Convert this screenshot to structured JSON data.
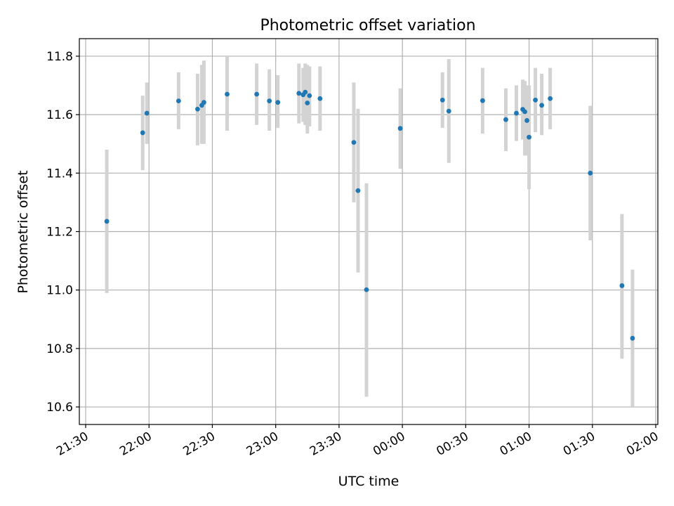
{
  "chart_data": {
    "type": "scatter",
    "title": "Photometric offset variation",
    "xlabel": "UTC time",
    "ylabel": "Photometric offset",
    "grid": true,
    "xlim": [
      "21:27",
      "02:01"
    ],
    "ylim": [
      10.54,
      11.86
    ],
    "x_ticks": [
      "21:30",
      "22:00",
      "22:30",
      "23:00",
      "23:30",
      "00:00",
      "00:30",
      "01:00",
      "01:30",
      "02:00"
    ],
    "y_ticks": [
      10.6,
      10.8,
      11.0,
      11.2,
      11.4,
      11.6,
      11.8
    ],
    "colors": {
      "point": "#1f77b4",
      "errorbar": "#d3d3d3"
    },
    "points": [
      {
        "x": "21:40",
        "y": 11.235,
        "lo": 10.99,
        "hi": 11.48
      },
      {
        "x": "21:57",
        "y": 11.538,
        "lo": 11.41,
        "hi": 11.665
      },
      {
        "x": "21:59",
        "y": 11.605,
        "lo": 11.5,
        "hi": 11.71
      },
      {
        "x": "22:14",
        "y": 11.647,
        "lo": 11.55,
        "hi": 11.745
      },
      {
        "x": "22:23",
        "y": 11.619,
        "lo": 11.495,
        "hi": 11.74
      },
      {
        "x": "22:25",
        "y": 11.632,
        "lo": 11.5,
        "hi": 11.77
      },
      {
        "x": "22:26",
        "y": 11.642,
        "lo": 11.5,
        "hi": 11.785
      },
      {
        "x": "22:37",
        "y": 11.67,
        "lo": 11.545,
        "hi": 11.8
      },
      {
        "x": "22:51",
        "y": 11.67,
        "lo": 11.565,
        "hi": 11.775
      },
      {
        "x": "22:57",
        "y": 11.647,
        "lo": 11.545,
        "hi": 11.755
      },
      {
        "x": "23:01",
        "y": 11.642,
        "lo": 11.555,
        "hi": 11.735
      },
      {
        "x": "23:11",
        "y": 11.673,
        "lo": 11.57,
        "hi": 11.775
      },
      {
        "x": "23:13",
        "y": 11.668,
        "lo": 11.575,
        "hi": 11.76
      },
      {
        "x": "23:14",
        "y": 11.677,
        "lo": 11.565,
        "hi": 11.775
      },
      {
        "x": "23:15",
        "y": 11.64,
        "lo": 11.535,
        "hi": 11.77
      },
      {
        "x": "23:16",
        "y": 11.665,
        "lo": 11.56,
        "hi": 11.765
      },
      {
        "x": "23:21",
        "y": 11.655,
        "lo": 11.545,
        "hi": 11.765
      },
      {
        "x": "23:37",
        "y": 11.505,
        "lo": 11.3,
        "hi": 11.71
      },
      {
        "x": "23:39",
        "y": 11.34,
        "lo": 11.06,
        "hi": 11.62
      },
      {
        "x": "23:43",
        "y": 11.001,
        "lo": 10.635,
        "hi": 11.365
      },
      {
        "x": "23:59",
        "y": 11.553,
        "lo": 11.415,
        "hi": 11.69
      },
      {
        "x": "00:19",
        "y": 11.65,
        "lo": 11.555,
        "hi": 11.745
      },
      {
        "x": "00:22",
        "y": 11.612,
        "lo": 11.435,
        "hi": 11.79
      },
      {
        "x": "00:38",
        "y": 11.648,
        "lo": 11.535,
        "hi": 11.76
      },
      {
        "x": "00:49",
        "y": 11.583,
        "lo": 11.475,
        "hi": 11.69
      },
      {
        "x": "00:54",
        "y": 11.605,
        "lo": 11.51,
        "hi": 11.7
      },
      {
        "x": "00:57",
        "y": 11.618,
        "lo": 11.515,
        "hi": 11.72
      },
      {
        "x": "00:58",
        "y": 11.61,
        "lo": 11.46,
        "hi": 11.715
      },
      {
        "x": "00:59",
        "y": 11.58,
        "lo": 11.46,
        "hi": 11.7
      },
      {
        "x": "01:00",
        "y": 11.523,
        "lo": 11.345,
        "hi": 11.7
      },
      {
        "x": "01:03",
        "y": 11.65,
        "lo": 11.54,
        "hi": 11.76
      },
      {
        "x": "01:06",
        "y": 11.632,
        "lo": 11.53,
        "hi": 11.74
      },
      {
        "x": "01:10",
        "y": 11.655,
        "lo": 11.55,
        "hi": 11.76
      },
      {
        "x": "01:29",
        "y": 11.4,
        "lo": 11.17,
        "hi": 11.63
      },
      {
        "x": "01:44",
        "y": 11.015,
        "lo": 10.765,
        "hi": 11.26
      },
      {
        "x": "01:49",
        "y": 10.835,
        "lo": 10.6,
        "hi": 11.07
      }
    ]
  }
}
